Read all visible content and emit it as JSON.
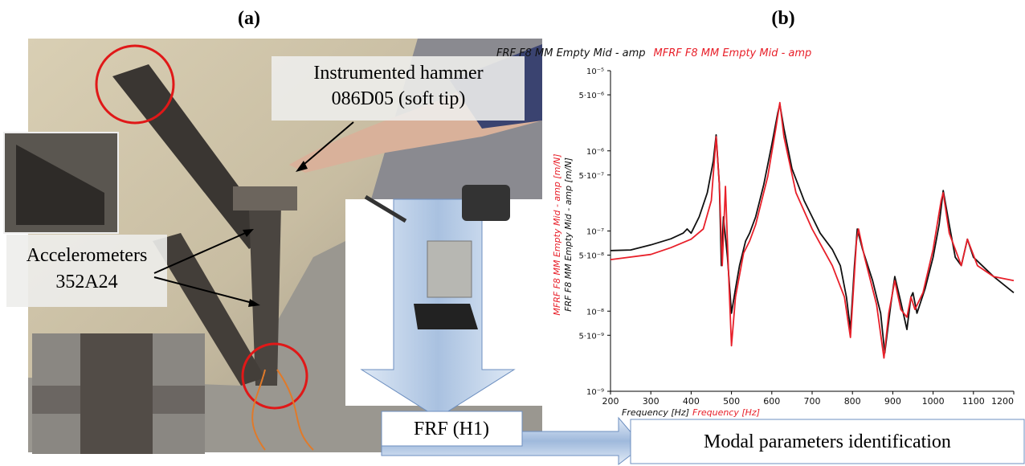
{
  "figure": {
    "panel_a": "(a)",
    "panel_b": "(b)",
    "hammer_label": [
      "Instrumented hammer",
      "086D05 (soft tip)"
    ],
    "accelerometer_label": [
      "Accelerometers",
      "352A24"
    ],
    "frf_box": "FRF (H1)",
    "modal_box": "Modal parameters identification"
  },
  "chart_data": {
    "type": "line",
    "title": [
      "FRF F8 MM Empty Mid - amp",
      "MFRF F8 MM Empty Mid - amp"
    ],
    "xlabel": [
      "Frequency [Hz]",
      "Frequency [Hz]"
    ],
    "ylabel": [
      "MFRF F8 MM Empty Mid - amp [m/N]",
      "FRF F8 MM Empty Mid - amp [m/N]"
    ],
    "ylog": true,
    "xlim": [
      200,
      1200
    ],
    "xticks": [
      200,
      300,
      400,
      500,
      600,
      700,
      800,
      900,
      1000,
      1100,
      1200
    ],
    "ylim": [
      1e-09,
      1e-05
    ],
    "yticks": [
      {
        "value": 1e-05,
        "label": "10⁻⁵"
      },
      {
        "value": 5e-06,
        "label": "5·10⁻⁶"
      },
      {
        "value": 1e-06,
        "label": "10⁻⁶"
      },
      {
        "value": 5e-07,
        "label": "5·10⁻⁷"
      },
      {
        "value": 1e-07,
        "label": "10⁻⁷"
      },
      {
        "value": 5e-08,
        "label": "5·10⁻⁸"
      },
      {
        "value": 1e-08,
        "label": "10⁻⁸"
      },
      {
        "value": 5e-09,
        "label": "5·10⁻⁹"
      },
      {
        "value": 1e-09,
        "label": "10⁻⁹"
      }
    ],
    "series": [
      {
        "color": "#111111",
        "x": [
          200,
          250,
          300,
          350,
          380,
          390,
          400,
          420,
          440,
          455,
          462,
          470,
          475,
          480,
          490,
          500,
          510,
          520,
          535,
          545,
          560,
          580,
          600,
          615,
          620,
          630,
          650,
          680,
          700,
          720,
          750,
          770,
          785,
          795,
          805,
          812,
          825,
          850,
          870,
          880,
          895,
          905,
          920,
          935,
          945,
          950,
          960,
          980,
          1000,
          1015,
          1025,
          1040,
          1055,
          1070,
          1085,
          1100,
          1150,
          1200
        ],
        "values": [
          5.7e-08,
          5.8e-08,
          6.7e-08,
          8e-08,
          9.4e-08,
          1.06e-07,
          9.4e-08,
          1.5e-07,
          3e-07,
          7.5e-07,
          1.58e-06,
          3.8e-07,
          3.7e-08,
          1.5e-07,
          4.7e-08,
          9.4e-09,
          1.9e-08,
          3.7e-08,
          7.5e-08,
          9.4e-08,
          1.5e-07,
          3.8e-07,
          1.2e-06,
          3e-06,
          3.8e-06,
          1.9e-06,
          6e-07,
          2.4e-07,
          1.5e-07,
          9.4e-08,
          5.9e-08,
          3.7e-08,
          1.5e-08,
          5.9e-09,
          3.7e-08,
          1.06e-07,
          5.9e-08,
          2.4e-08,
          9.4e-09,
          3e-09,
          1.2e-08,
          2.7e-08,
          1.3e-08,
          5.9e-09,
          1.5e-08,
          1.7e-08,
          9.4e-09,
          1.9e-08,
          4.7e-08,
          1.2e-07,
          3.2e-07,
          1.2e-07,
          4.7e-08,
          3.7e-08,
          7.9e-08,
          4.7e-08,
          2.7e-08,
          1.7e-08
        ]
      },
      {
        "color": "#e8202a",
        "x": [
          200,
          300,
          350,
          400,
          430,
          450,
          462,
          470,
          477,
          485,
          492,
          500,
          510,
          530,
          545,
          560,
          590,
          610,
          620,
          630,
          660,
          700,
          750,
          780,
          795,
          810,
          815,
          830,
          860,
          878,
          890,
          905,
          920,
          935,
          945,
          955,
          975,
          1000,
          1020,
          1025,
          1040,
          1070,
          1085,
          1110,
          1150,
          1200
        ],
        "values": [
          4.4e-08,
          5.1e-08,
          6.2e-08,
          7.9e-08,
          1.06e-07,
          2.4e-07,
          1.5e-06,
          3.8e-07,
          3.7e-08,
          3.6e-07,
          3.7e-08,
          3.7e-09,
          1.5e-08,
          5.3e-08,
          7.5e-08,
          1.2e-07,
          4.8e-07,
          1.9e-06,
          4e-06,
          1.5e-06,
          3e-07,
          1.06e-07,
          3.7e-08,
          1.5e-08,
          4.7e-09,
          7.5e-08,
          1.06e-07,
          4.7e-08,
          1.2e-08,
          2.6e-09,
          9.4e-09,
          2.4e-08,
          1.05e-08,
          8.4e-09,
          1.5e-08,
          1.05e-08,
          1.7e-08,
          5.9e-08,
          2.4e-07,
          3e-07,
          9.4e-08,
          3.7e-08,
          7.9e-08,
          3.7e-08,
          2.7e-08,
          2.4e-08
        ]
      }
    ]
  }
}
